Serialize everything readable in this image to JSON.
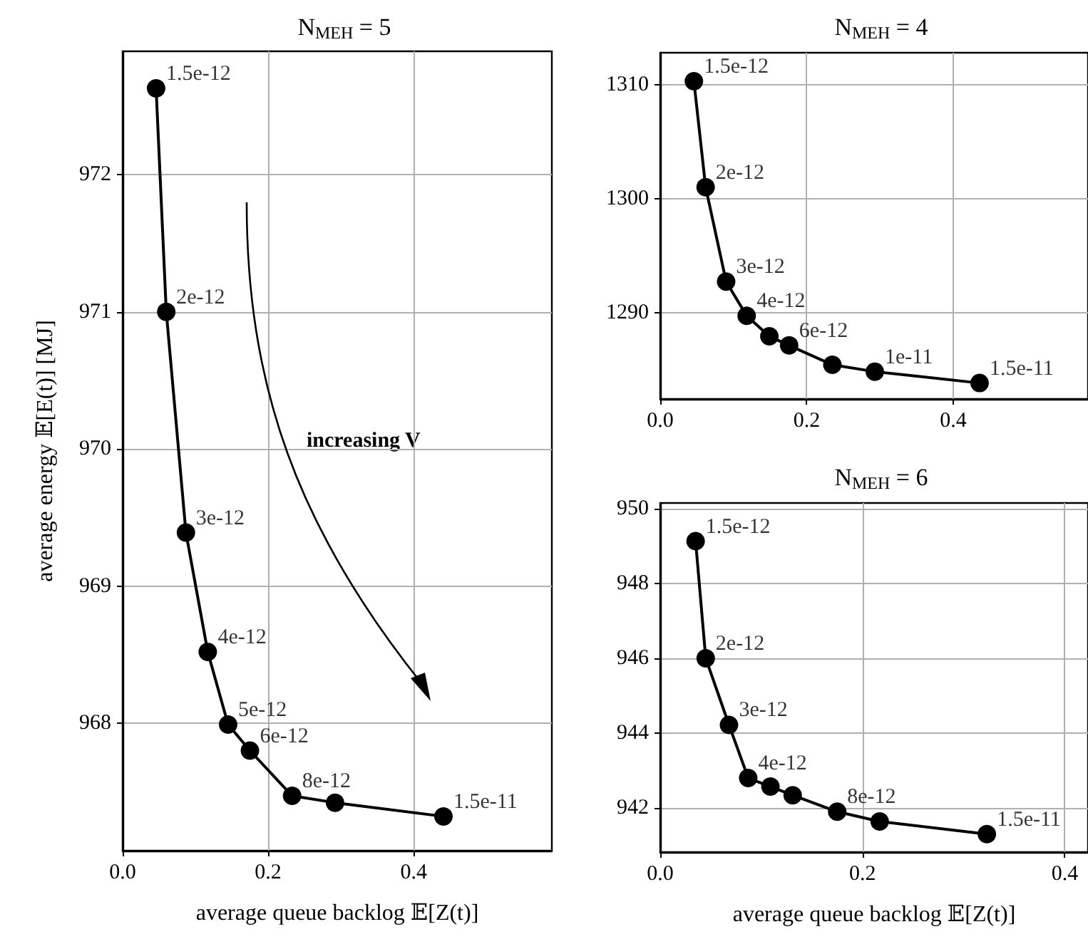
{
  "chart_data": [
    {
      "type": "line",
      "title": "N$_{MEH}$ = 5",
      "xlabel": "average queue backlog 𝔼[Z(t)]",
      "ylabel": "average energy 𝔼[E(t)] [MJ]",
      "x": [
        0.046,
        0.06,
        0.087,
        0.117,
        0.145,
        0.175,
        0.233,
        0.292,
        0.441
      ],
      "series": [
        {
          "color": "#000000",
          "values": [
            972.63,
            971.0,
            969.39,
            968.52,
            967.99,
            967.8,
            967.47,
            967.42,
            967.32
          ]
        }
      ],
      "xlim": [
        0,
        0.59
      ],
      "xticks": [
        {
          "value": 0,
          "label": "0.0"
        },
        {
          "value": 0.2,
          "label": "0.2"
        },
        {
          "value": 0.4,
          "label": "0.4"
        }
      ],
      "ylim": [
        967.07,
        972.9
      ],
      "yticks": [
        968,
        969,
        970,
        971,
        972
      ],
      "annotations": [
        "increasing V",
        {
          "text": "1.5e-12",
          "x": 0.046,
          "y": 972.63
        },
        {
          "text": "2e-12",
          "x": 0.06,
          "y": 971.0
        },
        {
          "text": "3e-12",
          "x": 0.087,
          "y": 969.39
        },
        {
          "text": "4e-12",
          "x": 0.117,
          "y": 968.52
        },
        {
          "text": "5e-12",
          "x": 0.145,
          "y": 967.99
        },
        {
          "text": "6e-12",
          "x": 0.175,
          "y": 967.8
        },
        {
          "text": "8e-12",
          "x": 0.233,
          "y": 967.47
        },
        {
          "text": "1.5e-11",
          "x": 0.441,
          "y": 967.32
        }
      ],
      "grid": true,
      "marker": "circle",
      "line_style": "solid"
    },
    {
      "type": "line",
      "title": "N$_{MEH}$ = 4",
      "x": [
        0.046,
        0.062,
        0.09,
        0.118,
        0.149,
        0.176,
        0.235,
        0.293,
        0.436
      ],
      "series": [
        {
          "color": "#000000",
          "values": [
            1310.3,
            1301.0,
            1292.7,
            1289.7,
            1287.9,
            1287.1,
            1285.4,
            1284.8,
            1283.8
          ]
        }
      ],
      "xlim": [
        0,
        0.584
      ],
      "xticks": [
        {
          "value": 0,
          "label": "0.0"
        },
        {
          "value": 0.2,
          "label": "0.2"
        },
        {
          "value": 0.4,
          "label": "0.4"
        }
      ],
      "ylim": [
        1282.4,
        1312.8
      ],
      "yticks": [
        1290,
        1300,
        1310
      ],
      "annotations": [
        {
          "text": "1.5e-12",
          "x": 0.046,
          "y": 1310.3
        },
        {
          "text": "2e-12",
          "x": 0.062,
          "y": 1301.0
        },
        {
          "text": "3e-12",
          "x": 0.09,
          "y": 1292.7
        },
        {
          "text": "4e-12",
          "x": 0.118,
          "y": 1289.7
        },
        {
          "text": "6e-12",
          "x": 0.176,
          "y": 1287.1
        },
        {
          "text": "1e-11",
          "x": 0.293,
          "y": 1284.8
        },
        {
          "text": "1.5e-11",
          "x": 0.436,
          "y": 1283.8
        }
      ],
      "grid": true,
      "marker": "circle",
      "line_style": "solid"
    },
    {
      "type": "line",
      "title": "N$_{MEH}$ = 6",
      "xlabel": "average queue backlog 𝔼[Z(t)]",
      "x": [
        0.035,
        0.045,
        0.068,
        0.087,
        0.109,
        0.131,
        0.175,
        0.217,
        0.323
      ],
      "series": [
        {
          "color": "#000000",
          "values": [
            949.13,
            946.0,
            944.22,
            942.8,
            942.57,
            942.34,
            941.9,
            941.64,
            941.3
          ]
        }
      ],
      "xlim": [
        0,
        0.423
      ],
      "xticks": [
        {
          "value": 0,
          "label": "0.0"
        },
        {
          "value": 0.2,
          "label": "0.2"
        },
        {
          "value": 0.4,
          "label": "0.4"
        }
      ],
      "ylim": [
        940.82,
        950.15
      ],
      "yticks": [
        942,
        944,
        946,
        948,
        950
      ],
      "annotations": [
        {
          "text": "1.5e-12",
          "x": 0.035,
          "y": 949.13
        },
        {
          "text": "2e-12",
          "x": 0.045,
          "y": 946.0
        },
        {
          "text": "3e-12",
          "x": 0.068,
          "y": 944.22
        },
        {
          "text": "4e-12",
          "x": 0.087,
          "y": 942.8
        },
        {
          "text": "8e-12",
          "x": 0.175,
          "y": 941.9
        },
        {
          "text": "1.5e-11",
          "x": 0.323,
          "y": 941.3
        }
      ],
      "grid": true,
      "marker": "circle",
      "line_style": "solid"
    }
  ]
}
